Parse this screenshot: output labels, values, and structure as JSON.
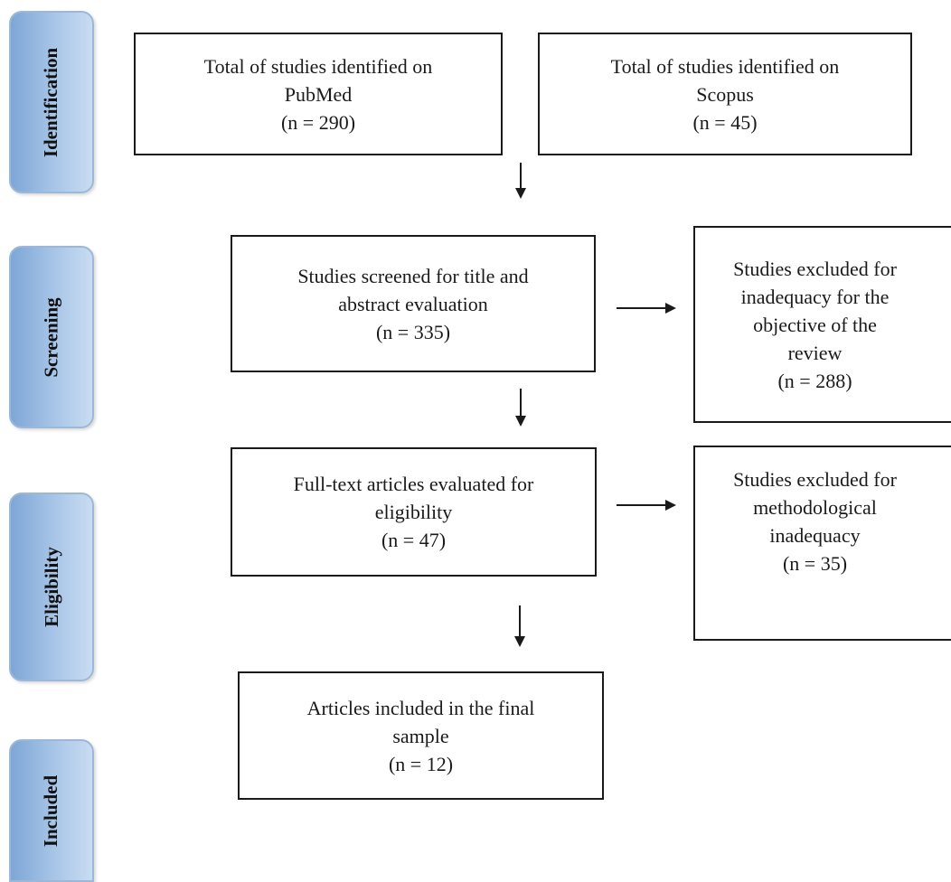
{
  "stages": {
    "identification": "Identification",
    "screening": "Screening",
    "eligibility": "Eligibility",
    "included": "Included"
  },
  "boxes": {
    "pubmed": {
      "line1": "Total of studies identified on",
      "line2": "PubMed",
      "count": "(n = 290)"
    },
    "scopus": {
      "line1": "Total of studies identified on",
      "line2": "Scopus",
      "count": "(n = 45)"
    },
    "screened": {
      "line1": "Studies screened for title and",
      "line2": "abstract evaluation",
      "count": "(n = 335)"
    },
    "excluded_objective": {
      "line1": "Studies excluded for",
      "line2": "inadequacy for the",
      "line3": "objective of the",
      "line4": "review",
      "count": "(n = 288)"
    },
    "fulltext": {
      "line1": "Full-text articles evaluated for",
      "line2": "eligibility",
      "count": "(n = 47)"
    },
    "excluded_method": {
      "line1": "Studies excluded for",
      "line2": "methodological",
      "line3": "inadequacy",
      "count": "(n = 35)"
    },
    "included": {
      "line1": "Articles included in the final",
      "line2": "sample",
      "count": "(n = 12)"
    }
  }
}
